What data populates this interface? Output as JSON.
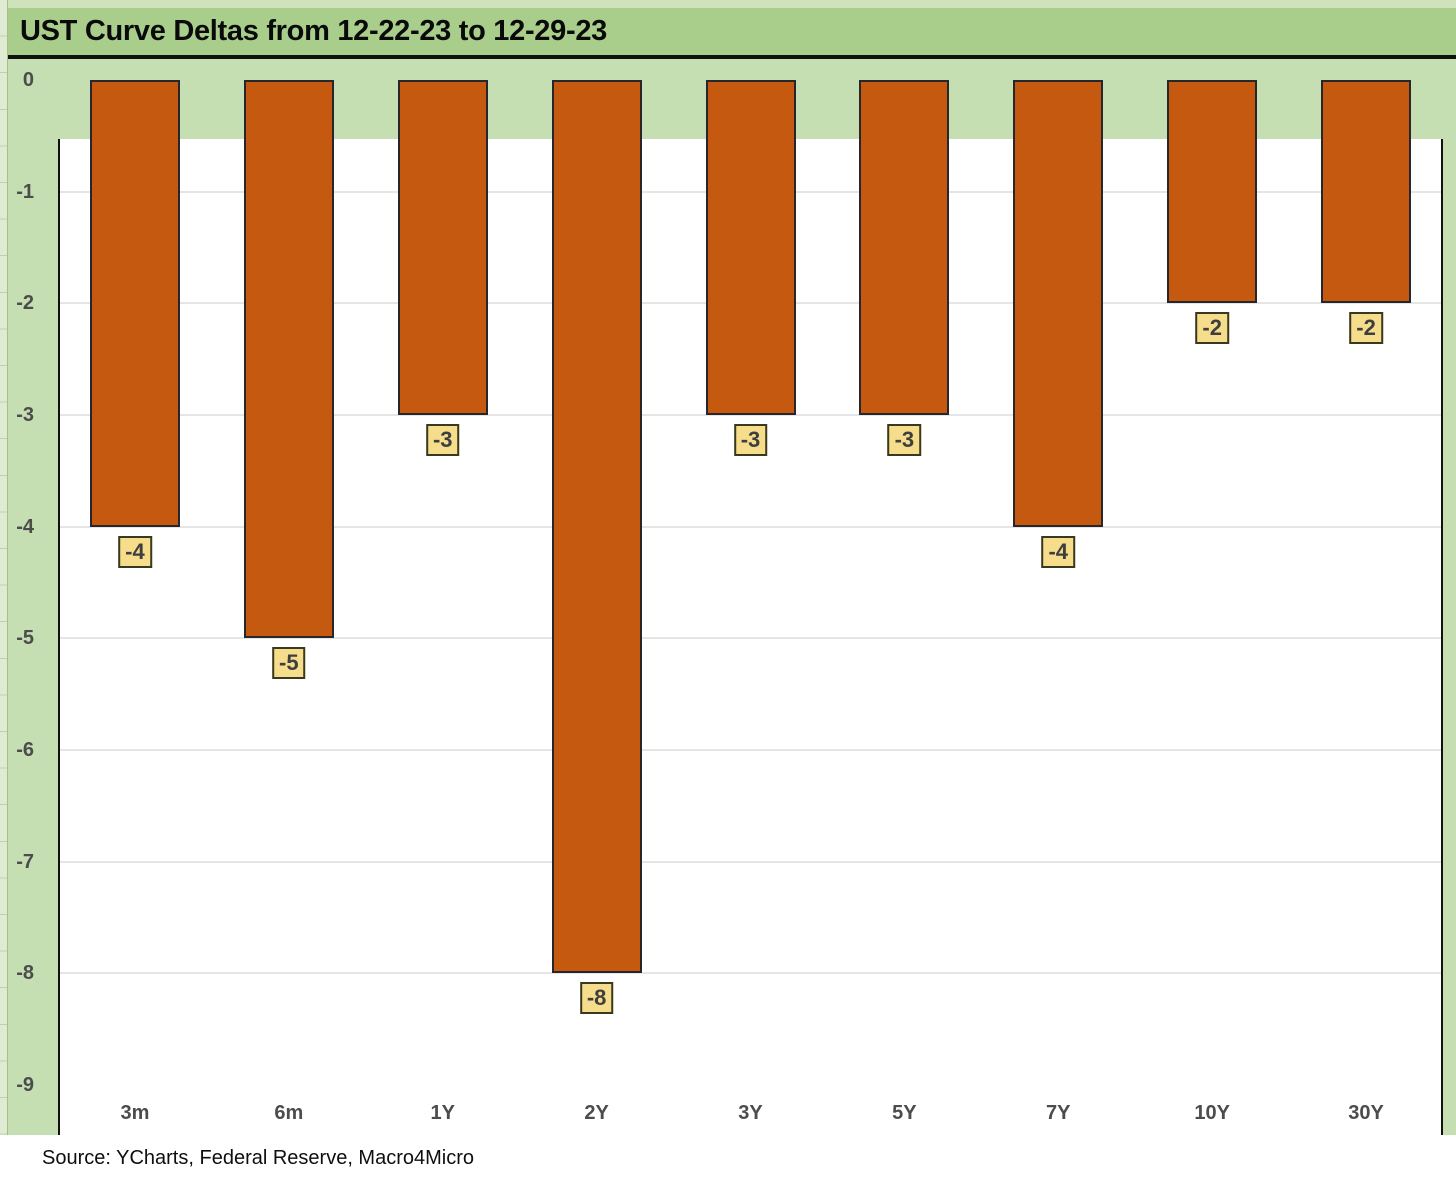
{
  "title": "UST Curve Deltas from 12-22-23 to 12-29-23",
  "source": "Source: YCharts, Federal Reserve, Macro4Micro",
  "chart_data": {
    "type": "bar",
    "title": "UST Curve Deltas from 12-22-23 to 12-29-23",
    "categories": [
      "3m",
      "6m",
      "1Y",
      "2Y",
      "3Y",
      "5Y",
      "7Y",
      "10Y",
      "30Y"
    ],
    "values": [
      -4,
      -5,
      -3,
      -8,
      -3,
      -3,
      -4,
      -2,
      -2
    ],
    "data_labels": [
      "-4",
      "-5",
      "-3",
      "-8",
      "-3",
      "-3",
      "-4",
      "-2",
      "-2"
    ],
    "xlabel": "",
    "ylabel": "",
    "ylim": [
      -9,
      0
    ],
    "yticks": [
      0,
      -1,
      -2,
      -3,
      -4,
      -5,
      -6,
      -7,
      -8,
      -9
    ],
    "grid": true,
    "legend": false,
    "colors": {
      "bar_fill": "#c4590f",
      "bar_border": "#26262c",
      "label_fill": "#f5dd8b",
      "label_border": "#39391f",
      "label_text": "#3e3e3e",
      "chart_bg": "#c5dfb2",
      "title_band_bg": "#a9ce8c",
      "plot_bg": "#ffffff",
      "gridline": "#e5e5e5",
      "axis_text": "#4c4c4c"
    }
  }
}
